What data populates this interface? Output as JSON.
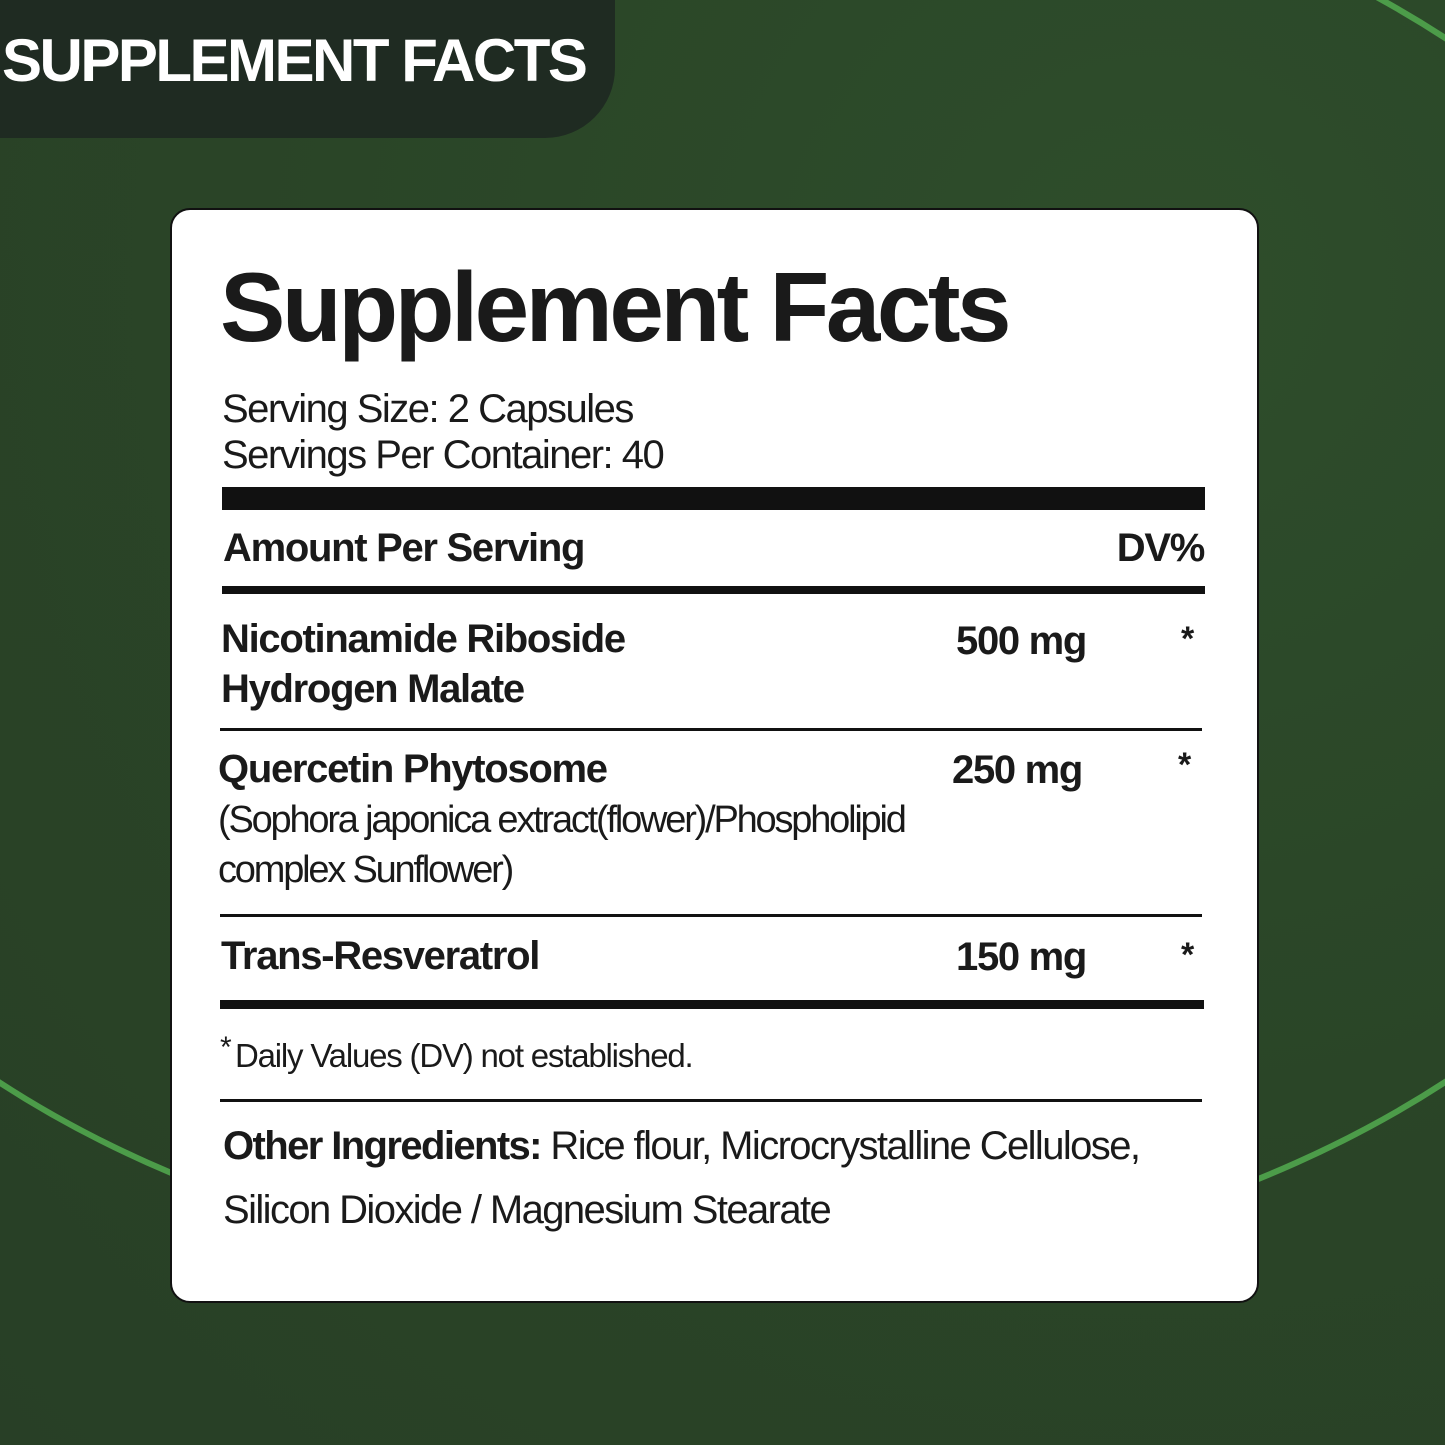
{
  "banner": {
    "title": "SUPPLEMENT FACTS"
  },
  "colors": {
    "background": "#2a4527",
    "banner": "#1f2b22",
    "accent_arc": "#4c9c49",
    "card": "#ffffff"
  },
  "label": {
    "title": "Supplement Facts",
    "serving_size": "Serving Size: 2 Capsules",
    "servings_per_container": "Servings Per Container: 40",
    "header_amount": "Amount Per Serving",
    "header_dv": "DV%",
    "ingredients": [
      {
        "name_line1": "Nicotinamide Riboside",
        "name_line2": "Hydrogen Malate",
        "amount": "500 mg",
        "dv": "*"
      },
      {
        "name_line1": "Quercetin Phytosome",
        "detail_line1": "(Sophora japonica extract(flower)/Phospholipid",
        "detail_line2": "complex Sunflower)",
        "amount": "250 mg",
        "dv": "*"
      },
      {
        "name_line1": "Trans-Resveratrol",
        "amount": "150 mg",
        "dv": "*"
      }
    ],
    "footnote_mark": "*",
    "footnote": "Daily Values (DV) not established.",
    "other_label": "Other Ingredients:",
    "other_line1": " Rice flour, Microcrystalline Cellulose,",
    "other_line2": "Silicon Dioxide / Magnesium Stearate"
  }
}
